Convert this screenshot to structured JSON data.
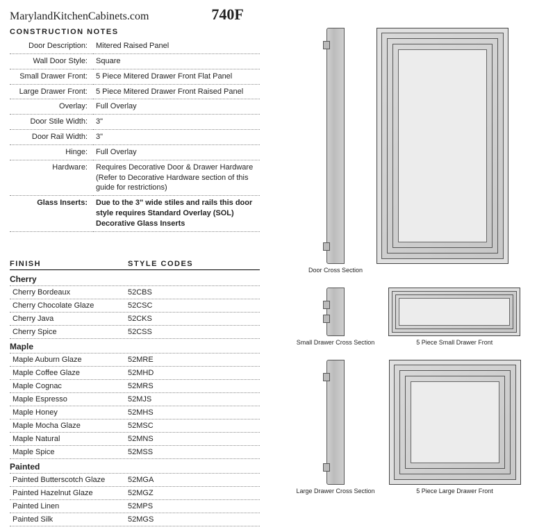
{
  "header": {
    "site": "MarylandKitchenCabinets.com",
    "model": "740F"
  },
  "construction": {
    "heading": "CONSTRUCTION NOTES",
    "rows": [
      {
        "label": "Door Description:",
        "value": "Mitered Raised Panel",
        "bold": false
      },
      {
        "label": "Wall Door Style:",
        "value": "Square",
        "bold": false
      },
      {
        "label": "Small Drawer Front:",
        "value": "5 Piece Mitered Drawer Front Flat Panel",
        "bold": false
      },
      {
        "label": "Large Drawer Front:",
        "value": "5 Piece Mitered Drawer Front Raised Panel",
        "bold": false
      },
      {
        "label": "Overlay:",
        "value": "Full Overlay",
        "bold": false
      },
      {
        "label": "Door Stile Width:",
        "value": "3\"",
        "bold": false
      },
      {
        "label": "Door Rail Width:",
        "value": "3\"",
        "bold": false
      },
      {
        "label": "Hinge:",
        "value": "Full Overlay",
        "bold": false
      },
      {
        "label": "Hardware:",
        "value": "Requires Decorative Door & Drawer Hardware (Refer to Decorative Hardware section of this guide for restrictions)",
        "bold": false
      },
      {
        "label": "Glass Inserts:",
        "value": "Due to the 3\" wide stiles and rails this door style requires Standard Overlay (SOL) Decorative Glass Inserts",
        "bold": true
      }
    ]
  },
  "finish": {
    "heading_a": "FINISH",
    "heading_b": "STYLE CODES",
    "groups": [
      {
        "title": "Cherry",
        "items": [
          {
            "name": "Cherry Bordeaux",
            "code": "52CBS"
          },
          {
            "name": "Cherry Chocolate Glaze",
            "code": "52CSC"
          },
          {
            "name": "Cherry Java",
            "code": "52CKS"
          },
          {
            "name": "Cherry Spice",
            "code": "52CSS"
          }
        ]
      },
      {
        "title": "Maple",
        "items": [
          {
            "name": "Maple Auburn Glaze",
            "code": "52MRE"
          },
          {
            "name": "Maple Coffee Glaze",
            "code": "52MHD"
          },
          {
            "name": "Maple Cognac",
            "code": "52MRS"
          },
          {
            "name": "Maple Espresso",
            "code": "52MJS"
          },
          {
            "name": "Maple Honey",
            "code": "52MHS"
          },
          {
            "name": "Maple Mocha Glaze",
            "code": "52MSC"
          },
          {
            "name": "Maple Natural",
            "code": "52MNS"
          },
          {
            "name": "Maple Spice",
            "code": "52MSS"
          }
        ]
      },
      {
        "title": "Painted",
        "items": [
          {
            "name": "Painted Butterscotch Glaze",
            "code": "52MGA"
          },
          {
            "name": "Painted Hazelnut Glaze",
            "code": "52MGZ"
          },
          {
            "name": "Painted Linen",
            "code": "52MPS"
          },
          {
            "name": "Painted Silk",
            "code": "52MGS"
          }
        ]
      }
    ]
  },
  "diagrams": {
    "door_cross": "Door Cross Section",
    "small_cross": "Small Drawer Cross Section",
    "large_cross": "Large Drawer Cross Section",
    "small_front": "5 Piece Small Drawer Front",
    "large_front": "5 Piece Large Drawer Front",
    "panel_bg": "#e0e0e0",
    "panel_border": "#444444",
    "section_bg": "#c8c8c8"
  }
}
